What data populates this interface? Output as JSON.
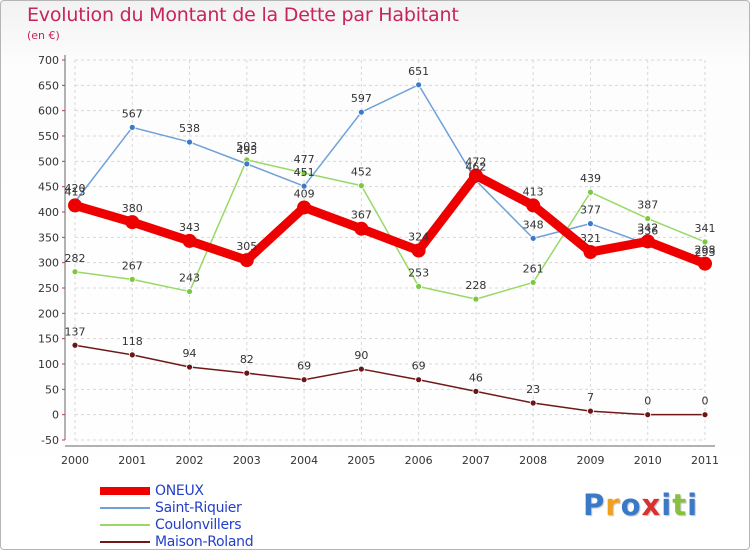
{
  "title": "Evolution du Montant de la Dette par Habitant",
  "subtitle": "(en €)",
  "logo": {
    "letters": [
      "P",
      "r",
      "o",
      "x",
      "i",
      "t",
      "i"
    ],
    "colors": [
      "#3a78c8",
      "#f0a020",
      "#3a78c8",
      "#d93030",
      "#3a78c8",
      "#88c040",
      "#3a78c8"
    ]
  },
  "chart_data": {
    "type": "line",
    "x": [
      "2000",
      "2001",
      "2002",
      "2003",
      "2004",
      "2005",
      "2006",
      "2007",
      "2008",
      "2009",
      "2010",
      "2011"
    ],
    "ylim": [
      -50,
      700
    ],
    "yticks": [
      "-50",
      "0",
      "50",
      "100",
      "150",
      "200",
      "250",
      "300",
      "350",
      "400",
      "450",
      "500",
      "550",
      "600",
      "650",
      "700"
    ],
    "grid": true,
    "legend_position": "bottom-left",
    "series": [
      {
        "name": "ONEUX",
        "color": "#ee0000",
        "width": 9,
        "values": [
          413,
          380,
          343,
          305,
          409,
          367,
          324,
          472,
          413,
          321,
          342,
          298
        ]
      },
      {
        "name": "Saint-Riquier",
        "color": "#6fa0d8",
        "width": 1.5,
        "values": [
          420,
          567,
          538,
          495,
          451,
          597,
          651,
          462,
          348,
          377,
          336,
          293
        ]
      },
      {
        "name": "Coulonvillers",
        "color": "#99d866",
        "width": 1.5,
        "values": [
          282,
          267,
          243,
          503,
          477,
          452,
          253,
          228,
          261,
          439,
          387,
          341
        ]
      },
      {
        "name": "Maison-Roland",
        "color": "#701818",
        "width": 1.5,
        "values": [
          137,
          118,
          94,
          82,
          69,
          90,
          69,
          46,
          23,
          7,
          0,
          0
        ]
      }
    ],
    "labels": [
      {
        "series": 0,
        "values": [
          "413",
          "380",
          "343",
          "305",
          "409",
          "367",
          "324",
          "472",
          "413",
          "321",
          "342",
          "298"
        ]
      },
      {
        "series": 1,
        "values": [
          "420",
          "567",
          "538",
          "495",
          "451",
          "597",
          "651",
          "462",
          "348",
          "377",
          "336",
          "293"
        ]
      },
      {
        "series": 2,
        "values": [
          "282",
          "267",
          "243",
          "503",
          "477",
          "452",
          "253",
          "228",
          "261",
          "439",
          "387",
          "341"
        ]
      },
      {
        "series": 3,
        "values": [
          "137",
          "118",
          "94",
          "82",
          "69",
          "90",
          "69",
          "46",
          "23",
          "7",
          "0",
          "0"
        ]
      }
    ]
  }
}
